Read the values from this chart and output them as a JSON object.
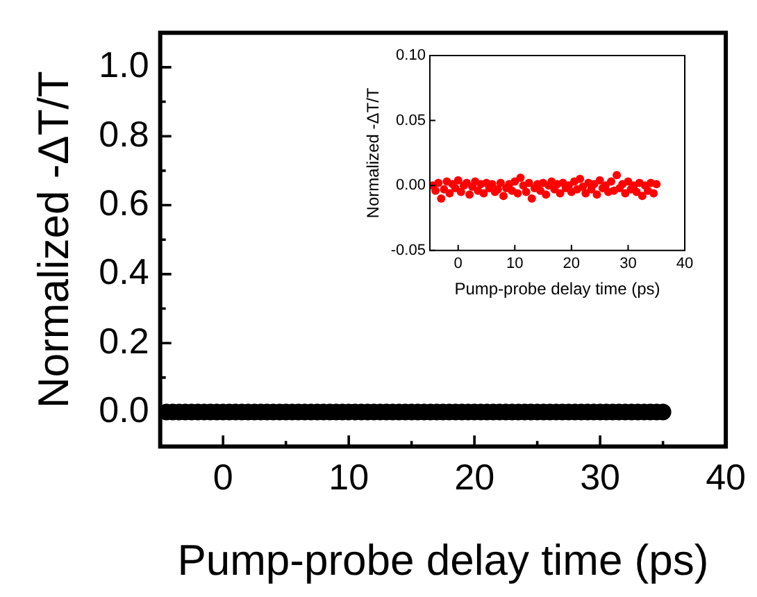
{
  "chart_data": [
    {
      "type": "scatter",
      "xlabel": "Pump-probe delay time (ps)",
      "ylabel": "Normalized -ΔT/T",
      "xlim": [
        -5,
        40
      ],
      "ylim": [
        -0.1,
        1.1
      ],
      "xticks": [
        0,
        {
          "value": 5,
          "label": null
        },
        10,
        {
          "value": 15,
          "label": null
        },
        20,
        {
          "value": 25,
          "label": null
        },
        30,
        {
          "value": 35,
          "label": null
        },
        40
      ],
      "yticks": [
        {
          "value": 0,
          "label": "0.0"
        },
        {
          "value": 0.1,
          "label": null
        },
        0.2,
        {
          "value": 0.3,
          "label": null
        },
        0.4,
        {
          "value": 0.5,
          "label": null
        },
        0.6,
        {
          "value": 0.7,
          "label": null
        },
        0.8,
        {
          "value": 0.9,
          "label": null
        },
        {
          "value": 1,
          "label": "1.0"
        }
      ],
      "marker": "circle",
      "x": [
        -4.5,
        -4,
        -3.5,
        -3,
        -2.5,
        -2,
        -1.5,
        -1,
        -0.5,
        0,
        0.5,
        1,
        1.5,
        2,
        2.5,
        3,
        3.5,
        4,
        4.5,
        5,
        5.5,
        6,
        6.5,
        7,
        7.5,
        8,
        8.5,
        9,
        9.5,
        10,
        10.5,
        11,
        11.5,
        12,
        12.5,
        13,
        13.5,
        14,
        14.5,
        15,
        15.5,
        16,
        16.5,
        17,
        17.5,
        18,
        18.5,
        19,
        19.5,
        20,
        20.5,
        21,
        21.5,
        22,
        22.5,
        23,
        23.5,
        24,
        24.5,
        25,
        25.5,
        26,
        26.5,
        27,
        27.5,
        28,
        28.5,
        29,
        29.5,
        30,
        30.5,
        31,
        31.5,
        32,
        32.5,
        33,
        33.5,
        34,
        34.5,
        35
      ],
      "series": [
        {
          "color": "#000000",
          "values": [
            0,
            0,
            0,
            0,
            0,
            0,
            0,
            0,
            0,
            0,
            0,
            0,
            0,
            0,
            0,
            0,
            0,
            0,
            0,
            0,
            0,
            0,
            0,
            0,
            0,
            0,
            0,
            0,
            0,
            0,
            0,
            0,
            0,
            0,
            0,
            0,
            0,
            0,
            0,
            0,
            0,
            0,
            0,
            0,
            0,
            0,
            0,
            0,
            0,
            0,
            0,
            0,
            0,
            0,
            0,
            0,
            0,
            0,
            0,
            0,
            0,
            0,
            0,
            0,
            0,
            0,
            0,
            0,
            0,
            0,
            0,
            0,
            0,
            0,
            0,
            0,
            0,
            0,
            0,
            0
          ]
        }
      ]
    },
    {
      "type": "scatter",
      "xlabel": "Pump-probe delay time (ps)",
      "ylabel": "Normalized -ΔT/T",
      "xlim": [
        -5,
        40
      ],
      "ylim": [
        -0.05,
        0.1
      ],
      "xticks": [
        0,
        10,
        20,
        30,
        40
      ],
      "yticks": [
        {
          "value": -0.05,
          "label": "-0.05"
        },
        {
          "value": 0,
          "label": "0.00"
        },
        0.05,
        {
          "value": 0.1,
          "label": "0.10"
        }
      ],
      "marker": "circle",
      "x": [
        -4.5,
        -4,
        -3.5,
        -3,
        -2.5,
        -2,
        -1.5,
        -1,
        -0.5,
        0,
        0.5,
        1,
        1.5,
        2,
        2.5,
        3,
        3.5,
        4,
        4.5,
        5,
        5.5,
        6,
        6.5,
        7,
        7.5,
        8,
        8.5,
        9,
        9.5,
        10,
        10.5,
        11,
        11.5,
        12,
        12.5,
        13,
        13.5,
        14,
        14.5,
        15,
        15.5,
        16,
        16.5,
        17,
        17.5,
        18,
        18.5,
        19,
        19.5,
        20,
        20.5,
        21,
        21.5,
        22,
        22.5,
        23,
        23.5,
        24,
        24.5,
        25,
        25.5,
        26,
        26.5,
        27,
        27.5,
        28,
        28.5,
        29,
        29.5,
        30,
        30.5,
        31,
        31.5,
        32,
        32.5,
        33,
        33.5,
        34,
        34.5,
        35
      ],
      "series": [
        {
          "color": "#ff0000",
          "values": [
            0,
            -0.004,
            0.002,
            -0.01,
            -0.003,
            0.003,
            -0.006,
            0.001,
            -0.002,
            0.004,
            -0.005,
            0,
            0.002,
            -0.007,
            -0.001,
            0.003,
            -0.004,
            0.001,
            -0.006,
            0.002,
            -0.002,
            0.001,
            -0.005,
            -0.003,
            0.002,
            -0.008,
            -0.002,
            0.001,
            -0.004,
            0.003,
            -0.006,
            0.006,
            0,
            -0.005,
            0.002,
            -0.01,
            -0.002,
            0.001,
            -0.004,
            0.002,
            -0.007,
            0,
            0.003,
            -0.003,
            0.001,
            -0.006,
            0.002,
            -0.002,
            0,
            -0.005,
            0.003,
            -0.003,
            0.005,
            -0.001,
            -0.006,
            0.002,
            -0.003,
            0.001,
            -0.007,
            0.004,
            -0.002,
            0,
            -0.005,
            0.003,
            -0.004,
            0.008,
            -0.002,
            0.001,
            -0.006,
            0.003,
            -0.003,
            0,
            -0.005,
            0.002,
            -0.008,
            0,
            -0.004,
            0.002,
            -0.006,
            0.001
          ]
        }
      ]
    }
  ]
}
